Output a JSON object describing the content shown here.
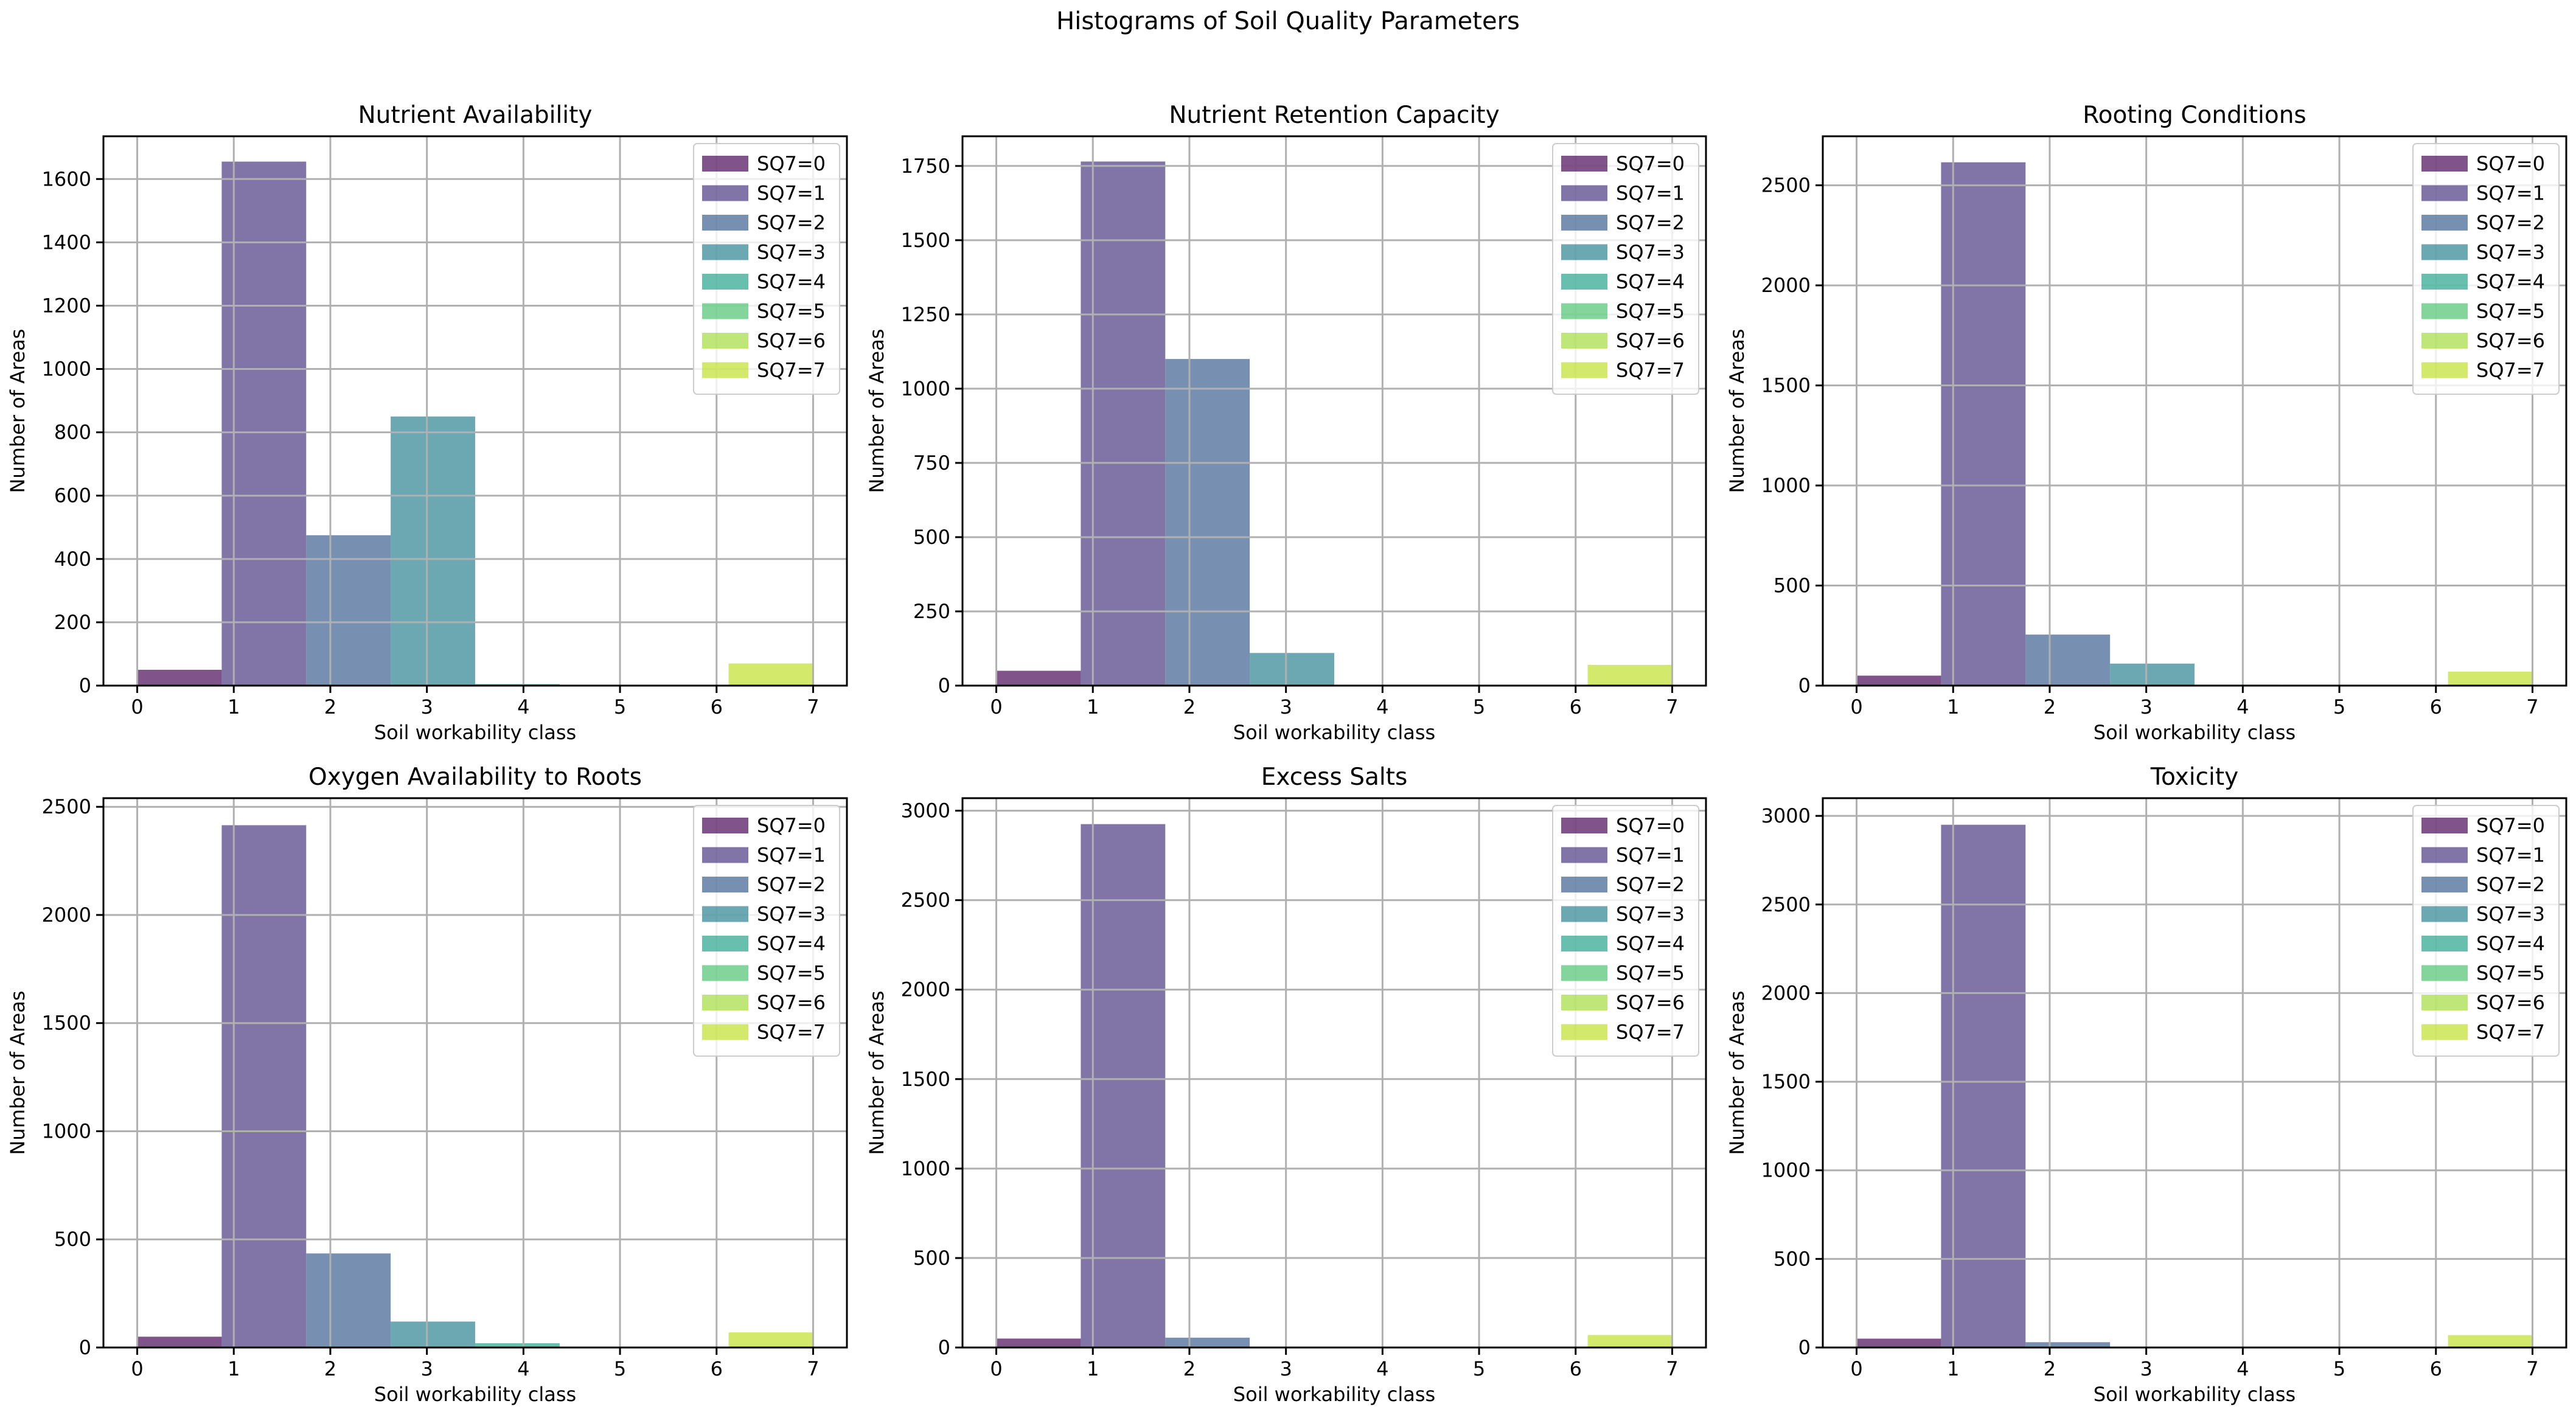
{
  "figure": {
    "title": "Histograms of Soil Quality Parameters"
  },
  "chart_data": [
    {
      "type": "bar",
      "title": "Nutrient Availability",
      "xlabel": "Soil workability class",
      "ylabel": "Number of Areas",
      "xlim": [
        -0.35,
        7.35
      ],
      "ylim": [
        0,
        1735
      ],
      "yticks": [
        0,
        200,
        400,
        600,
        800,
        1000,
        1200,
        1400,
        1600
      ],
      "xticks": [
        0,
        1,
        2,
        3,
        4,
        5,
        6,
        7
      ],
      "categories": [
        "SQ7=0",
        "SQ7=1",
        "SQ7=2",
        "SQ7=3",
        "SQ7=4",
        "SQ7=5",
        "SQ7=6",
        "SQ7=7"
      ],
      "values": [
        50,
        1655,
        475,
        850,
        5,
        0,
        0,
        70
      ],
      "legend": "top-right"
    },
    {
      "type": "bar",
      "title": "Nutrient Retention Capacity",
      "xlabel": "Soil workability class",
      "ylabel": "Number of Areas",
      "xlim": [
        -0.35,
        7.35
      ],
      "ylim": [
        0,
        1850
      ],
      "yticks": [
        0,
        250,
        500,
        750,
        1000,
        1250,
        1500,
        1750
      ],
      "xticks": [
        0,
        1,
        2,
        3,
        4,
        5,
        6,
        7
      ],
      "categories": [
        "SQ7=0",
        "SQ7=1",
        "SQ7=2",
        "SQ7=3",
        "SQ7=4",
        "SQ7=5",
        "SQ7=6",
        "SQ7=7"
      ],
      "values": [
        50,
        1765,
        1100,
        110,
        0,
        0,
        0,
        70
      ],
      "legend": "top-right"
    },
    {
      "type": "bar",
      "title": "Rooting Conditions",
      "xlabel": "Soil workability class",
      "ylabel": "Number of Areas",
      "xlim": [
        -0.35,
        7.35
      ],
      "ylim": [
        0,
        2745
      ],
      "yticks": [
        0,
        500,
        1000,
        1500,
        2000,
        2500
      ],
      "xticks": [
        0,
        1,
        2,
        3,
        4,
        5,
        6,
        7
      ],
      "categories": [
        "SQ7=0",
        "SQ7=1",
        "SQ7=2",
        "SQ7=3",
        "SQ7=4",
        "SQ7=5",
        "SQ7=6",
        "SQ7=7"
      ],
      "values": [
        50,
        2615,
        255,
        110,
        5,
        0,
        0,
        70
      ],
      "legend": "top-right"
    },
    {
      "type": "bar",
      "title": "Oxygen Availability to Roots",
      "xlabel": "Soil workability class",
      "ylabel": "Number of Areas",
      "xlim": [
        -0.35,
        7.35
      ],
      "ylim": [
        0,
        2540
      ],
      "yticks": [
        0,
        500,
        1000,
        1500,
        2000,
        2500
      ],
      "xticks": [
        0,
        1,
        2,
        3,
        4,
        5,
        6,
        7
      ],
      "categories": [
        "SQ7=0",
        "SQ7=1",
        "SQ7=2",
        "SQ7=3",
        "SQ7=4",
        "SQ7=5",
        "SQ7=6",
        "SQ7=7"
      ],
      "values": [
        50,
        2415,
        435,
        120,
        20,
        0,
        0,
        70
      ],
      "legend": "top-right"
    },
    {
      "type": "bar",
      "title": "Excess Salts",
      "xlabel": "Soil workability class",
      "ylabel": "Number of Areas",
      "xlim": [
        -0.35,
        7.35
      ],
      "ylim": [
        0,
        3070
      ],
      "yticks": [
        0,
        500,
        1000,
        1500,
        2000,
        2500,
        3000
      ],
      "xticks": [
        0,
        1,
        2,
        3,
        4,
        5,
        6,
        7
      ],
      "categories": [
        "SQ7=0",
        "SQ7=1",
        "SQ7=2",
        "SQ7=3",
        "SQ7=4",
        "SQ7=5",
        "SQ7=6",
        "SQ7=7"
      ],
      "values": [
        50,
        2925,
        55,
        5,
        0,
        0,
        0,
        70
      ],
      "legend": "top-right"
    },
    {
      "type": "bar",
      "title": "Toxicity",
      "xlabel": "Soil workability class",
      "ylabel": "Number of Areas",
      "xlim": [
        -0.35,
        7.35
      ],
      "ylim": [
        0,
        3100
      ],
      "yticks": [
        0,
        500,
        1000,
        1500,
        2000,
        2500,
        3000
      ],
      "xticks": [
        0,
        1,
        2,
        3,
        4,
        5,
        6,
        7
      ],
      "categories": [
        "SQ7=0",
        "SQ7=1",
        "SQ7=2",
        "SQ7=3",
        "SQ7=4",
        "SQ7=5",
        "SQ7=6",
        "SQ7=7"
      ],
      "values": [
        50,
        2950,
        30,
        0,
        0,
        0,
        0,
        70
      ],
      "legend": "top-right"
    }
  ],
  "colors": [
    "#440154",
    "#46337e",
    "#365c8d",
    "#277f8e",
    "#1fa187",
    "#4ac16d",
    "#a0da39",
    "#bddf26"
  ]
}
